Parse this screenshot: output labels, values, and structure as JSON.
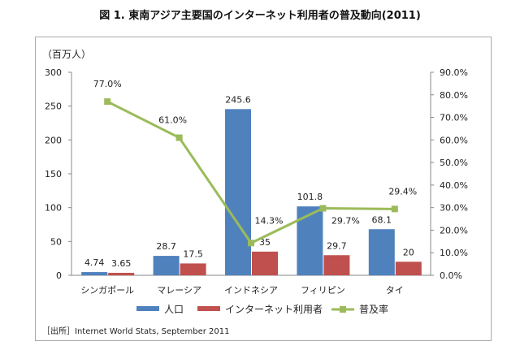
{
  "title": "図 1. 東南アジア主要国のインターネット利用者の普及動向(2011)",
  "source": "［出所］Internet World Stats, September 2011",
  "chart_data": {
    "type": "bar+line",
    "categories": [
      "シンガポール",
      "マレーシア",
      "インドネシア",
      "フィリピン",
      "タイ"
    ],
    "y_unit_label": "（百万人）",
    "ylim": [
      0,
      300
    ],
    "yticks": [
      0,
      50,
      100,
      150,
      200,
      250,
      300
    ],
    "y2lim": [
      0,
      90
    ],
    "y2ticks": [
      "0.0%",
      "10.0%",
      "20.0%",
      "30.0%",
      "40.0%",
      "50.0%",
      "60.0%",
      "70.0%",
      "80.0%",
      "90.0%"
    ],
    "legend_position": "bottom",
    "series": [
      {
        "name": "人口",
        "type": "bar",
        "axis": "left",
        "color": "#4f81bd",
        "values": [
          4.74,
          28.7,
          245.6,
          101.8,
          68.1
        ],
        "labels": [
          "4.74",
          "28.7",
          "245.6",
          "101.8",
          "68.1"
        ]
      },
      {
        "name": "インターネット利用者",
        "type": "bar",
        "axis": "left",
        "color": "#c0504d",
        "values": [
          3.65,
          17.5,
          35,
          29.7,
          20
        ],
        "labels": [
          "3.65",
          "17.5",
          "35",
          "29.7",
          "20"
        ]
      },
      {
        "name": "普及率",
        "type": "line",
        "axis": "right",
        "color": "#9bbb59",
        "values": [
          77.0,
          61.0,
          14.3,
          29.7,
          29.4
        ],
        "labels": [
          "77.0%",
          "61.0%",
          "14.3%",
          "29.7%",
          "29.4%"
        ]
      }
    ]
  }
}
